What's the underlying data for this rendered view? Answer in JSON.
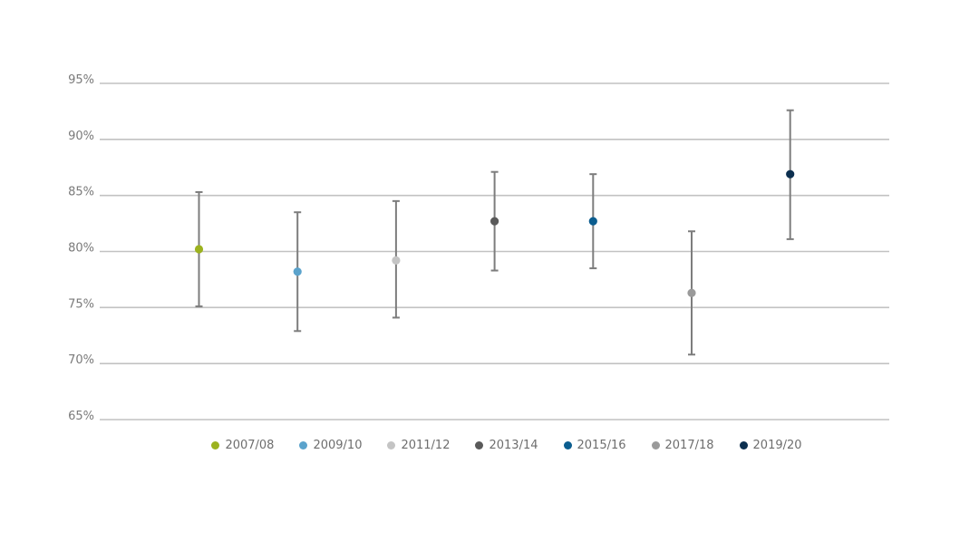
{
  "chart_data": {
    "type": "scatter",
    "title": "",
    "xlabel": "",
    "ylabel": "",
    "ylim": [
      65,
      95
    ],
    "y_ticks": [
      65,
      70,
      75,
      80,
      85,
      90,
      95
    ],
    "y_tick_labels": [
      "65%",
      "70%",
      "75%",
      "80%",
      "85%",
      "90%",
      "95%"
    ],
    "grid": true,
    "legend_position": "bottom",
    "error_bar_color": "#7d7d7d",
    "gridline_color": "#c2c2c2",
    "series": [
      {
        "name": "2007/08",
        "value": 80.2,
        "lower": 75.1,
        "upper": 85.3,
        "color": "#9cb21f"
      },
      {
        "name": "2009/10",
        "value": 78.2,
        "lower": 72.9,
        "upper": 83.5,
        "color": "#5ba3cc"
      },
      {
        "name": "2011/12",
        "value": 79.2,
        "lower": 74.1,
        "upper": 84.5,
        "color": "#c4c4c4"
      },
      {
        "name": "2013/14",
        "value": 82.7,
        "lower": 78.3,
        "upper": 87.1,
        "color": "#5a5a5a"
      },
      {
        "name": "2015/16",
        "value": 82.7,
        "lower": 78.5,
        "upper": 86.9,
        "color": "#0b5d8f"
      },
      {
        "name": "2017/18",
        "value": 76.3,
        "lower": 70.8,
        "upper": 81.8,
        "color": "#9a9a9a"
      },
      {
        "name": "2019/20",
        "value": 86.9,
        "lower": 81.1,
        "upper": 92.6,
        "color": "#0c2f4f"
      }
    ]
  }
}
